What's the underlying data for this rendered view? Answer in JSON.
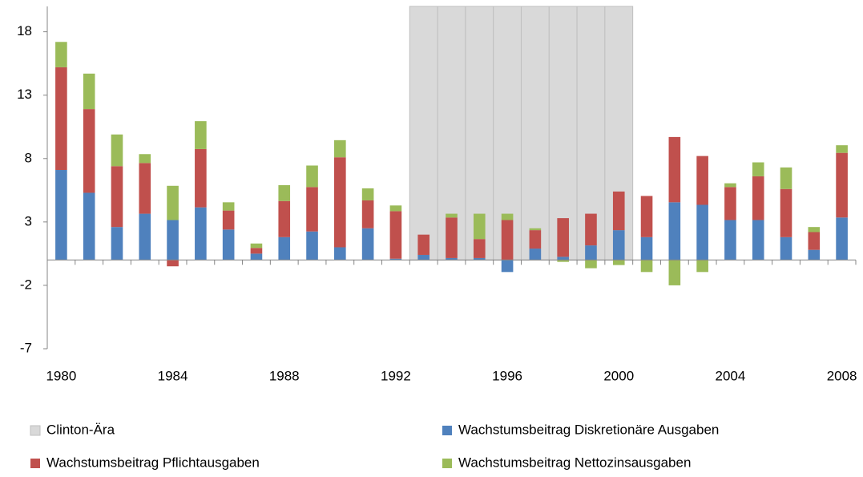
{
  "chart_data": {
    "type": "bar",
    "stacked": true,
    "categories": [
      "1980",
      null,
      null,
      null,
      "1984",
      null,
      null,
      null,
      "1988",
      null,
      null,
      null,
      "1992",
      null,
      null,
      null,
      "1996",
      null,
      null,
      null,
      "2000",
      null,
      null,
      null,
      "2004",
      null,
      null,
      null,
      "2008"
    ],
    "ylim": [
      -7,
      20
    ],
    "yticks": [
      -7,
      -2,
      3,
      8,
      13,
      18
    ],
    "series": [
      {
        "name": "Clinton-Ära",
        "type": "shade",
        "color": "#d9d9d9",
        "values": [
          null,
          null,
          null,
          null,
          null,
          null,
          null,
          null,
          null,
          null,
          null,
          null,
          null,
          20,
          20,
          20,
          20,
          20,
          20,
          20,
          20,
          null,
          null,
          null,
          null,
          null,
          null,
          null,
          null
        ]
      },
      {
        "name": "Wachstumsbeitrag Diskretionäre Ausgaben",
        "color": "#4f81bd",
        "values": [
          7.1,
          5.3,
          2.6,
          3.65,
          3.15,
          4.15,
          2.4,
          0.5,
          1.8,
          2.25,
          1.0,
          2.5,
          0.1,
          0.4,
          0.15,
          0.15,
          -0.95,
          0.9,
          0.25,
          1.15,
          2.35,
          1.8,
          4.55,
          4.35,
          3.15,
          3.15,
          1.8,
          0.8,
          3.35
        ]
      },
      {
        "name": "Wachstumsbeitrag Pflichtausgaben",
        "color": "#c0504d",
        "values": [
          8.1,
          6.6,
          4.8,
          4.0,
          -0.5,
          4.6,
          1.5,
          0.45,
          2.85,
          3.5,
          7.1,
          2.2,
          3.75,
          1.6,
          3.2,
          1.5,
          3.15,
          1.45,
          3.05,
          2.5,
          3.05,
          3.25,
          5.15,
          3.85,
          2.6,
          3.45,
          3.8,
          1.4,
          5.1
        ]
      },
      {
        "name": "Wachstumsbeitrag Nettozinsausgaben",
        "color": "#9bbb59",
        "values": [
          2.0,
          2.8,
          2.5,
          0.7,
          2.7,
          2.2,
          0.65,
          0.35,
          1.25,
          1.7,
          1.35,
          0.95,
          0.45,
          0,
          0.3,
          2.0,
          0.5,
          0.15,
          -0.15,
          -0.65,
          -0.4,
          -0.95,
          -2.0,
          -0.95,
          0.3,
          1.1,
          1.7,
          0.4,
          0.6
        ]
      }
    ]
  }
}
